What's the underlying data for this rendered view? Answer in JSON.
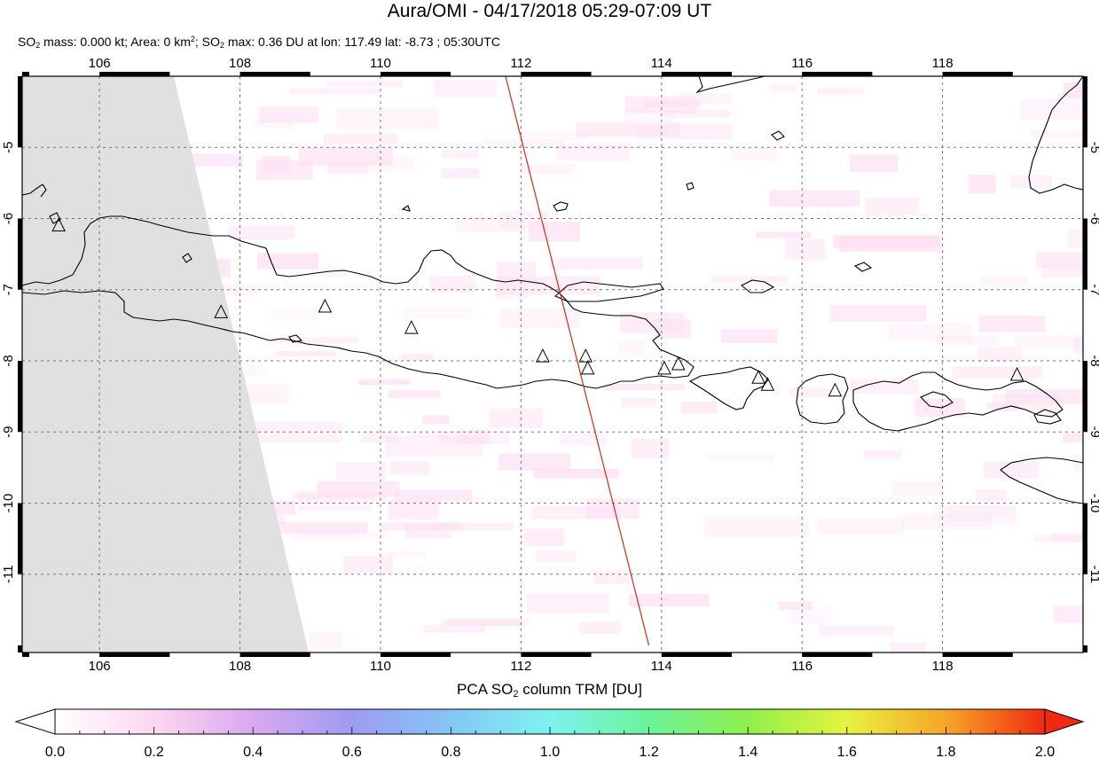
{
  "title": "Aura/OMI - 04/17/2018 05:29-07:09 UT",
  "subtitle": {
    "mass_label": "SO",
    "mass_sub": "2",
    "mass_text": " mass: 0.000 kt; Area: 0 km",
    "area_sup": "2",
    "sep": "; SO",
    "max_sub": "2",
    "max_text": " max: 0.36 DU at lon: 117.49 lat: -8.73 ; 05:30UTC"
  },
  "map": {
    "lon_range": [
      104.9,
      120.0
    ],
    "lat_range": [
      -12.1,
      -4.0
    ],
    "lon_ticks": [
      "106",
      "108",
      "110",
      "112",
      "114",
      "116",
      "118"
    ],
    "lat_ticks": [
      "-5",
      "-6",
      "-7",
      "-8",
      "-9",
      "-10",
      "-11"
    ],
    "grid": "dashed",
    "colors": {
      "land_outline": "#000000",
      "no_data": "#e0e0e0",
      "overpass_track": "#d42a1a",
      "so2_low": "#fde0f2"
    },
    "volcano_marker": "triangle-icon",
    "volcanoes": [
      {
        "lon": 105.42,
        "lat": -6.1
      },
      {
        "lon": 107.73,
        "lat": -7.32
      },
      {
        "lon": 109.21,
        "lat": -7.24
      },
      {
        "lon": 110.44,
        "lat": -7.54
      },
      {
        "lon": 112.31,
        "lat": -7.94
      },
      {
        "lon": 112.92,
        "lat": -7.94
      },
      {
        "lon": 112.95,
        "lat": -8.11
      },
      {
        "lon": 114.04,
        "lat": -8.11
      },
      {
        "lon": 114.24,
        "lat": -8.05
      },
      {
        "lon": 115.38,
        "lat": -8.24
      },
      {
        "lon": 115.51,
        "lat": -8.34
      },
      {
        "lon": 116.47,
        "lat": -8.42
      },
      {
        "lon": 119.06,
        "lat": -8.2
      }
    ],
    "track": [
      [
        111.78,
        -4.0
      ],
      [
        113.82,
        -12.0
      ]
    ]
  },
  "colorbar": {
    "title_pre": "PCA SO",
    "title_sub": "2",
    "title_post": " column TRM [DU]",
    "ticks": [
      "0.0",
      "0.2",
      "0.4",
      "0.6",
      "0.8",
      "1.0",
      "1.2",
      "1.4",
      "1.6",
      "1.8",
      "2.0"
    ],
    "range": [
      0.0,
      2.0
    ],
    "colors": [
      "#ffffff",
      "#fdd7f1",
      "#d9a8ef",
      "#9f9bf2",
      "#84c6f5",
      "#7ef2ee",
      "#6bf39a",
      "#8ef04b",
      "#e7f23f",
      "#f7a528",
      "#f02a0f"
    ],
    "extend": "both"
  }
}
